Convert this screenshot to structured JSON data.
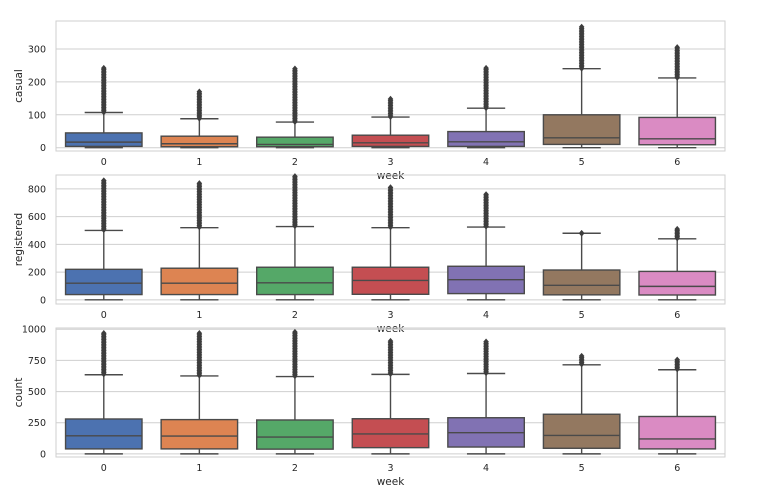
{
  "chart_data": [
    {
      "type": "box",
      "ylabel": "casual",
      "xlabel": "week",
      "categories": [
        "0",
        "1",
        "2",
        "3",
        "4",
        "5",
        "6"
      ],
      "ylim": [
        -10,
        385
      ],
      "yticks": [
        0,
        100,
        200,
        300
      ],
      "grid": true,
      "colors": [
        "#4c72b0",
        "#dd8452",
        "#55a868",
        "#c44e52",
        "#8172b3",
        "#937860",
        "#da8bc3"
      ],
      "boxes": [
        {
          "whisker_low": 0,
          "q1": 4,
          "median": 17,
          "q3": 45,
          "whisker_high": 107,
          "outlier_range": [
            108,
            242
          ]
        },
        {
          "whisker_low": 0,
          "q1": 3,
          "median": 12,
          "q3": 35,
          "whisker_high": 88,
          "outlier_range": [
            89,
            170
          ]
        },
        {
          "whisker_low": 0,
          "q1": 3,
          "median": 10,
          "q3": 32,
          "whisker_high": 78,
          "outlier_range": [
            79,
            240
          ]
        },
        {
          "whisker_low": 0,
          "q1": 4,
          "median": 15,
          "q3": 38,
          "whisker_high": 93,
          "outlier_range": [
            94,
            148
          ]
        },
        {
          "whisker_low": 0,
          "q1": 4,
          "median": 18,
          "q3": 49,
          "whisker_high": 120,
          "outlier_range": [
            121,
            242
          ]
        },
        {
          "whisker_low": 0,
          "q1": 10,
          "median": 30,
          "q3": 100,
          "whisker_high": 240,
          "outlier_range": [
            241,
            367
          ]
        },
        {
          "whisker_low": 0,
          "q1": 9,
          "median": 27,
          "q3": 92,
          "whisker_high": 212,
          "outlier_range": [
            213,
            305
          ]
        }
      ]
    },
    {
      "type": "box",
      "ylabel": "registered",
      "xlabel": "week",
      "categories": [
        "0",
        "1",
        "2",
        "3",
        "4",
        "5",
        "6"
      ],
      "ylim": [
        -30,
        900
      ],
      "yticks": [
        0,
        200,
        400,
        600,
        800
      ],
      "grid": true,
      "colors": [
        "#4c72b0",
        "#dd8452",
        "#55a868",
        "#c44e52",
        "#8172b3",
        "#937860",
        "#da8bc3"
      ],
      "boxes": [
        {
          "whisker_low": 0,
          "q1": 38,
          "median": 120,
          "q3": 220,
          "whisker_high": 500,
          "outlier_range": [
            505,
            860
          ]
        },
        {
          "whisker_low": 0,
          "q1": 38,
          "median": 120,
          "q3": 228,
          "whisker_high": 520,
          "outlier_range": [
            525,
            840
          ]
        },
        {
          "whisker_low": 0,
          "q1": 38,
          "median": 123,
          "q3": 235,
          "whisker_high": 528,
          "outlier_range": [
            533,
            890
          ]
        },
        {
          "whisker_low": 0,
          "q1": 40,
          "median": 140,
          "q3": 235,
          "whisker_high": 520,
          "outlier_range": [
            525,
            810
          ]
        },
        {
          "whisker_low": 0,
          "q1": 45,
          "median": 145,
          "q3": 242,
          "whisker_high": 525,
          "outlier_range": [
            530,
            760
          ]
        },
        {
          "whisker_low": 0,
          "q1": 36,
          "median": 105,
          "q3": 215,
          "whisker_high": 480,
          "outlier_range": [
            480,
            480
          ]
        },
        {
          "whisker_low": 0,
          "q1": 35,
          "median": 97,
          "q3": 205,
          "whisker_high": 440,
          "outlier_range": [
            445,
            510
          ]
        }
      ]
    },
    {
      "type": "box",
      "ylabel": "count",
      "xlabel": "week",
      "categories": [
        "0",
        "1",
        "2",
        "3",
        "4",
        "5",
        "6"
      ],
      "ylim": [
        -25,
        1010
      ],
      "yticks": [
        0,
        250,
        500,
        750,
        1000
      ],
      "grid": true,
      "colors": [
        "#4c72b0",
        "#dd8452",
        "#55a868",
        "#c44e52",
        "#8172b3",
        "#937860",
        "#da8bc3"
      ],
      "boxes": [
        {
          "whisker_low": 0,
          "q1": 40,
          "median": 145,
          "q3": 280,
          "whisker_high": 635,
          "outlier_range": [
            640,
            968
          ]
        },
        {
          "whisker_low": 0,
          "q1": 40,
          "median": 143,
          "q3": 275,
          "whisker_high": 625,
          "outlier_range": [
            630,
            968
          ]
        },
        {
          "whisker_low": 0,
          "q1": 38,
          "median": 135,
          "q3": 272,
          "whisker_high": 620,
          "outlier_range": [
            625,
            977
          ]
        },
        {
          "whisker_low": 0,
          "q1": 50,
          "median": 160,
          "q3": 282,
          "whisker_high": 638,
          "outlier_range": [
            643,
            905
          ]
        },
        {
          "whisker_low": 0,
          "q1": 55,
          "median": 170,
          "q3": 290,
          "whisker_high": 645,
          "outlier_range": [
            650,
            900
          ]
        },
        {
          "whisker_low": 0,
          "q1": 45,
          "median": 148,
          "q3": 318,
          "whisker_high": 715,
          "outlier_range": [
            720,
            785
          ]
        },
        {
          "whisker_low": 0,
          "q1": 40,
          "median": 120,
          "q3": 300,
          "whisker_high": 675,
          "outlier_range": [
            680,
            755
          ]
        }
      ]
    }
  ]
}
